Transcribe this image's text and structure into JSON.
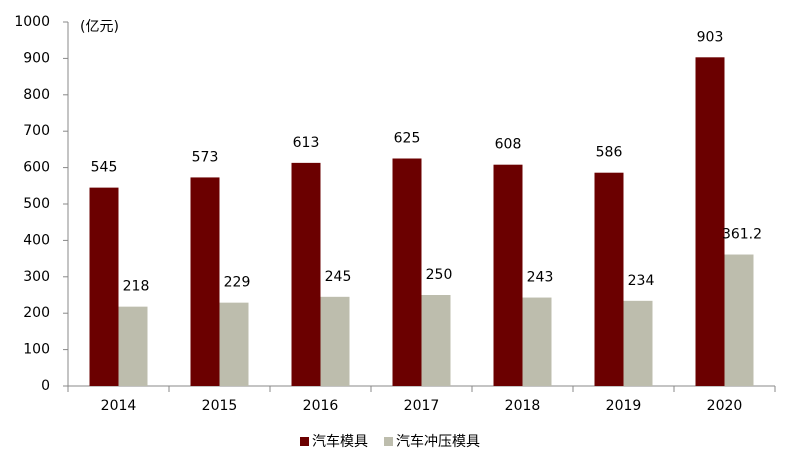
{
  "chart_data": {
    "type": "bar",
    "unit_label": "(亿元)",
    "categories": [
      "2014",
      "2015",
      "2016",
      "2017",
      "2018",
      "2019",
      "2020"
    ],
    "series": [
      {
        "name": "汽车模具",
        "color": "#6b0000",
        "values": [
          545,
          573,
          613,
          625,
          608,
          586,
          903
        ]
      },
      {
        "name": "汽车冲压模具",
        "color": "#bdbdad",
        "values": [
          218,
          229,
          245,
          250,
          243,
          234,
          361.2
        ]
      }
    ],
    "ylim": [
      0,
      1000
    ],
    "yticks": [
      0,
      100,
      200,
      300,
      400,
      500,
      600,
      700,
      800,
      900,
      1000
    ],
    "grid": false,
    "legend": "bottom"
  }
}
